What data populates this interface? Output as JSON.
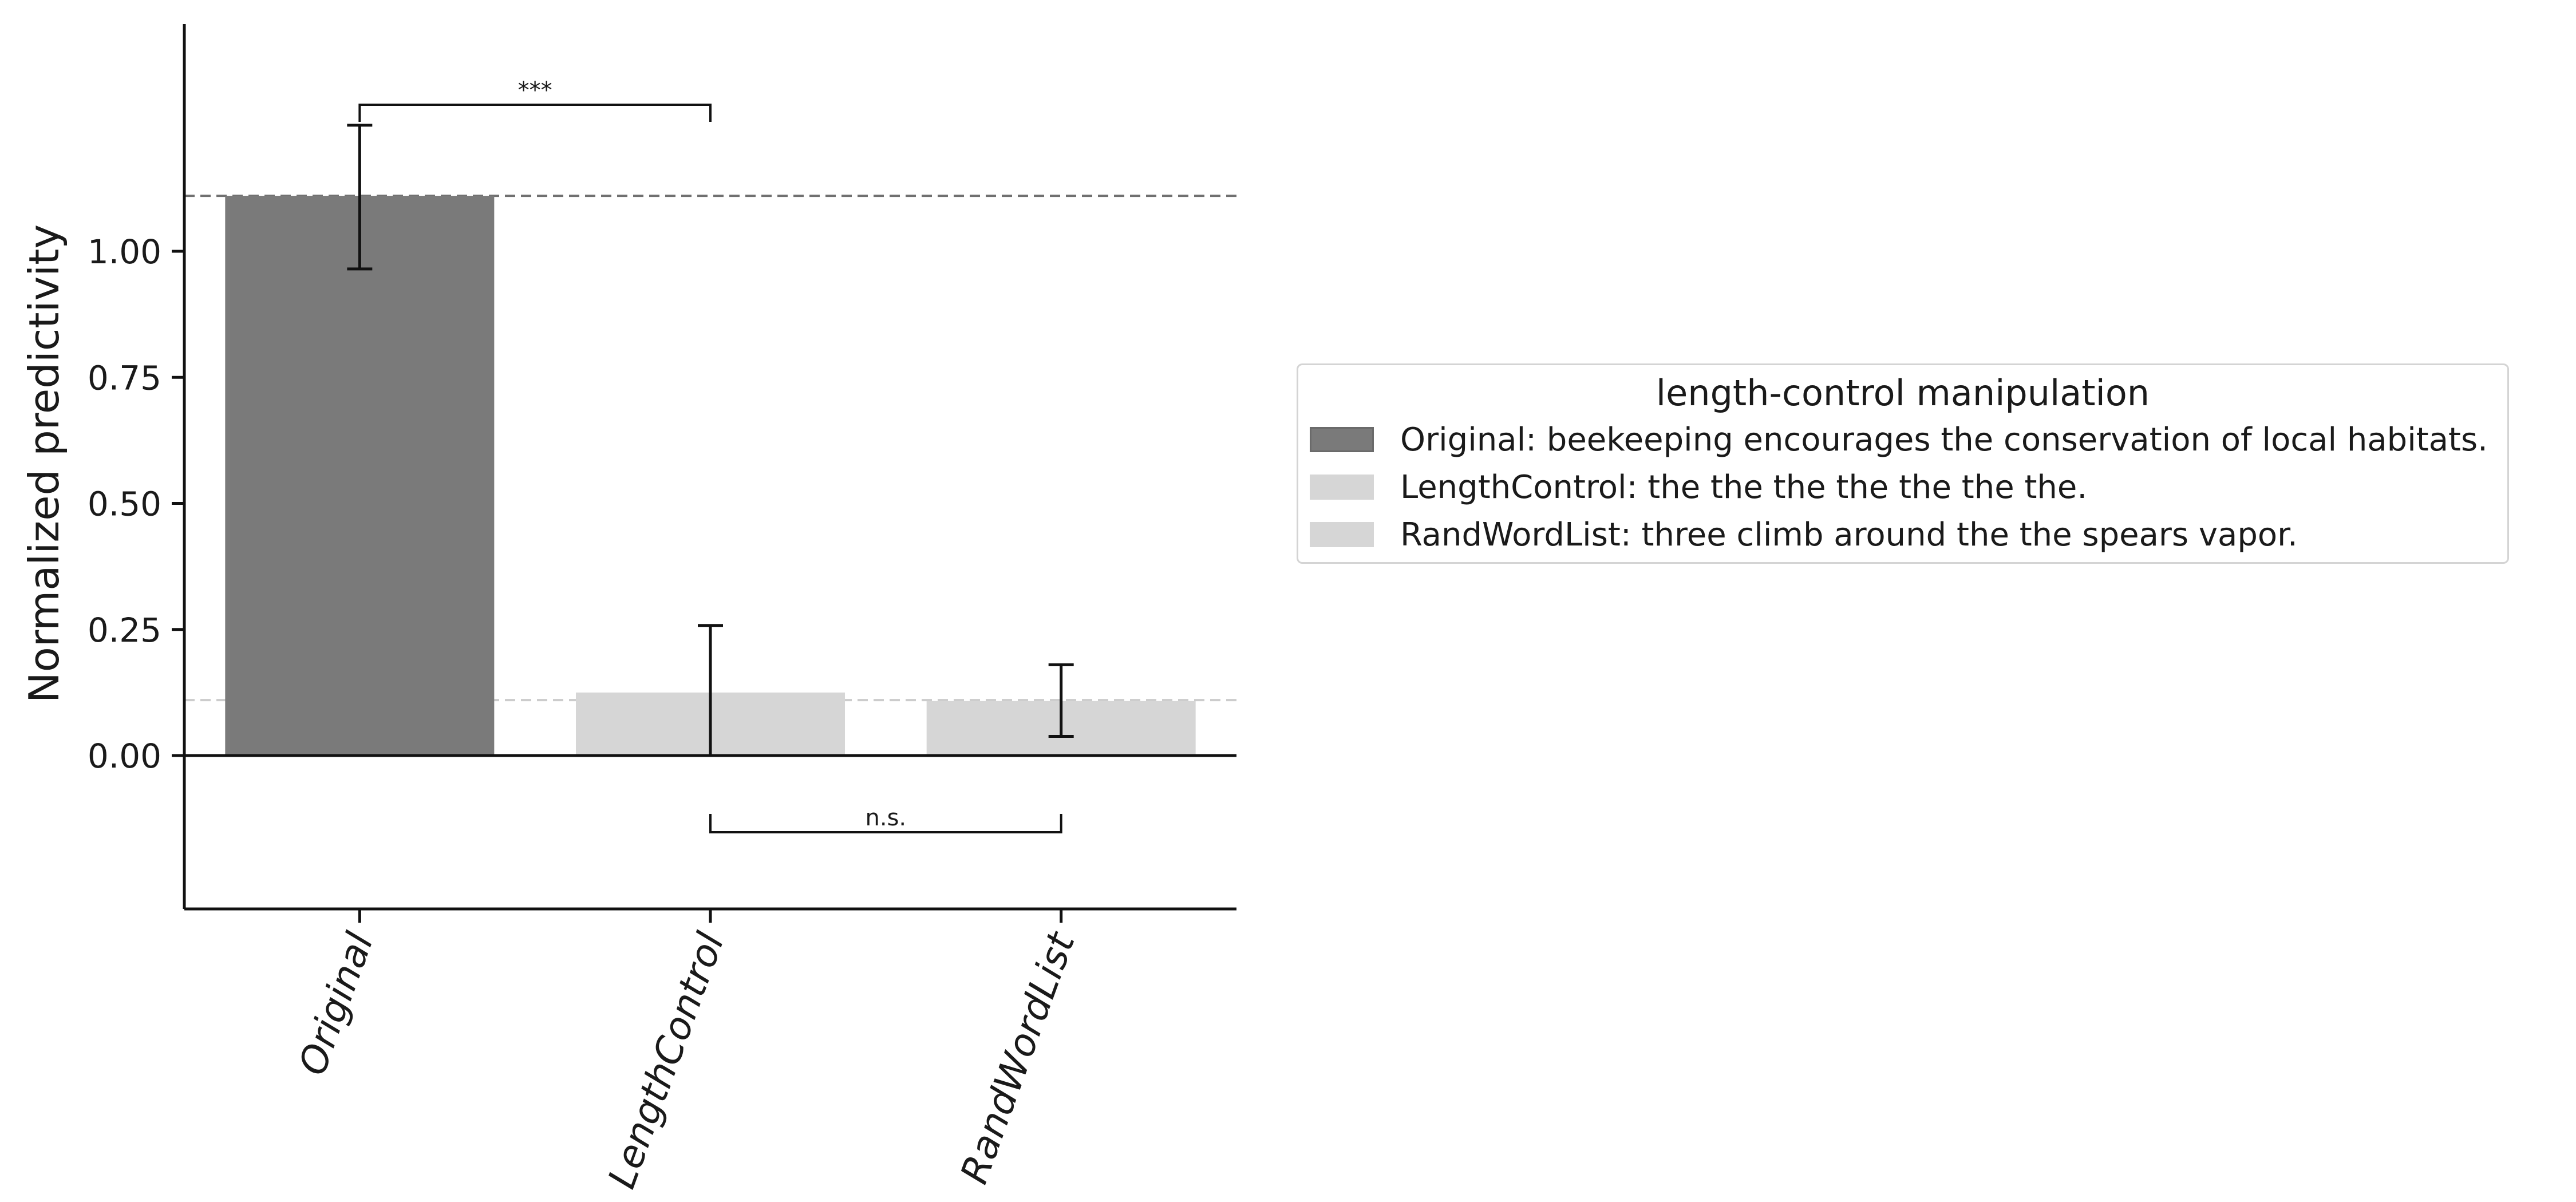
{
  "chart_data": {
    "type": "bar",
    "categories": [
      "Original",
      "LengthControl",
      "RandWordList"
    ],
    "values": [
      1.11,
      0.125,
      0.108
    ],
    "errors": [
      {
        "low": 0.965,
        "high": 1.25
      },
      {
        "low": 0.0,
        "high": 0.258
      },
      {
        "low": 0.038,
        "high": 0.18
      }
    ],
    "colors": [
      "#7a7a7a",
      "#d6d6d6",
      "#d6d6d6"
    ],
    "xlabel": "",
    "ylabel": "Normalized predictivity",
    "yticks": [
      "0.00",
      "0.25",
      "0.50",
      "0.75",
      "1.00"
    ],
    "ylim": [
      -0.3,
      1.45
    ],
    "reference_lines": [
      {
        "y": 1.11,
        "color": "#707070"
      },
      {
        "y": 0.11,
        "color": "#cccccc"
      }
    ],
    "significance": [
      {
        "from": 0,
        "to": 1,
        "label": "***",
        "position": "above"
      },
      {
        "from": 1,
        "to": 2,
        "label": "n.s.",
        "position": "below"
      }
    ],
    "grid": false,
    "legend_position": "right"
  },
  "legend": {
    "title": "length-control manipulation",
    "items": [
      {
        "label": "Original: beekeeping encourages the conservation of local habitats.",
        "color": "#7a7a7a"
      },
      {
        "label": "LengthControl: the the the the the the the.",
        "color": "#d6d6d6"
      },
      {
        "label": "RandWordList: three climb around the the spears vapor.",
        "color": "#d6d6d6"
      }
    ]
  }
}
